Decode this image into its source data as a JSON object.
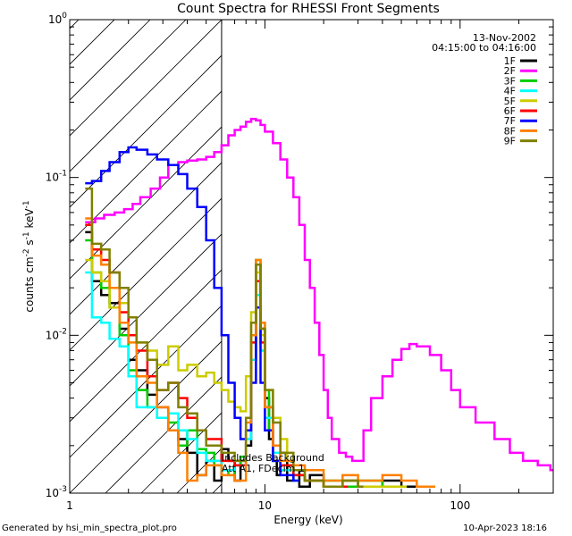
{
  "chart_data": {
    "type": "line",
    "title": "Count Spectra for RHESSI Front Segments",
    "xlabel": "Energy (keV)",
    "ylabel_main": "counts cm",
    "ylabel_sup1": "-2",
    "ylabel_mid": " s",
    "ylabel_sup2": "-1",
    "ylabel_end": " keV",
    "ylabel_sup3": "-1",
    "xscale": "log",
    "yscale": "log",
    "xlim": [
      1,
      300
    ],
    "ylim": [
      0.001,
      1
    ],
    "x_ticks": [
      {
        "value": 1,
        "label": "1"
      },
      {
        "value": 10,
        "label": "10"
      },
      {
        "value": 100,
        "label": "100"
      }
    ],
    "y_ticks": [
      {
        "value": 1,
        "base": "10",
        "exp": "0"
      },
      {
        "value": 0.1,
        "base": "10",
        "exp": "-1"
      },
      {
        "value": 0.01,
        "base": "10",
        "exp": "-2"
      },
      {
        "value": 0.001,
        "base": "10",
        "exp": "-3"
      }
    ],
    "hatch_region_max_keV": 6,
    "date": "13-Nov-2002",
    "time_range": "04:15:00 to 04:16:00",
    "annotation_line1": "Includes Background",
    "annotation_line2": "Att A1, FDecim 1",
    "legend_position": "top-right",
    "series": [
      {
        "name": "1F",
        "color": "#000000",
        "x": [
          1.2,
          1.3,
          1.45,
          1.6,
          1.8,
          2.0,
          2.2,
          2.5,
          2.8,
          3.2,
          3.6,
          4.0,
          4.5,
          5.0,
          5.5,
          6.0,
          6.5,
          7.0,
          7.5,
          8.0,
          8.5,
          9.0,
          9.5,
          10.0,
          10.5,
          11.0,
          11.5,
          12.0,
          13.0,
          14.0,
          15.0,
          17.0,
          20.0,
          25.0,
          30.0,
          40.0,
          50.0,
          60.0
        ],
        "values": [
          0.045,
          0.022,
          0.018,
          0.016,
          0.011,
          0.007,
          0.006,
          0.0042,
          0.0035,
          0.0025,
          0.0022,
          0.0018,
          0.0013,
          0.0016,
          0.0012,
          0.0019,
          0.0016,
          0.0012,
          0.0016,
          0.002,
          0.007,
          0.028,
          0.011,
          0.004,
          0.0022,
          0.0016,
          0.0013,
          0.0018,
          0.0012,
          0.0014,
          0.0011,
          0.0013,
          0.0011,
          0.0012,
          0.0011,
          0.0012,
          0.0011,
          0.0011
        ]
      },
      {
        "name": "2F",
        "color": "#ff00ff",
        "x": [
          1.2,
          1.35,
          1.5,
          1.7,
          1.9,
          2.1,
          2.3,
          2.6,
          2.9,
          3.2,
          3.6,
          4.0,
          4.5,
          5.0,
          5.5,
          6.0,
          6.5,
          7.0,
          7.5,
          8.0,
          8.5,
          9.0,
          9.5,
          10.0,
          11.0,
          12.0,
          13.0,
          14.0,
          15.0,
          16.0,
          17.0,
          18.0,
          19.0,
          20.0,
          21.0,
          22.0,
          24.0,
          26.0,
          28.0,
          30.0,
          32.0,
          35.0,
          40.0,
          45.0,
          50.0,
          55.0,
          60.0,
          70.0,
          80.0,
          90.0,
          100.0,
          120.0,
          150.0,
          180.0,
          210.0,
          250.0,
          290.0
        ],
        "values": [
          0.052,
          0.055,
          0.058,
          0.06,
          0.063,
          0.068,
          0.075,
          0.085,
          0.1,
          0.12,
          0.125,
          0.128,
          0.13,
          0.135,
          0.145,
          0.16,
          0.185,
          0.2,
          0.21,
          0.225,
          0.235,
          0.23,
          0.215,
          0.195,
          0.165,
          0.13,
          0.1,
          0.075,
          0.05,
          0.03,
          0.02,
          0.012,
          0.0075,
          0.0045,
          0.003,
          0.0022,
          0.0018,
          0.0017,
          0.0016,
          0.0016,
          0.0025,
          0.004,
          0.0055,
          0.007,
          0.0082,
          0.0088,
          0.0085,
          0.0075,
          0.006,
          0.0045,
          0.0035,
          0.0028,
          0.0022,
          0.0018,
          0.0016,
          0.0015,
          0.0014
        ]
      },
      {
        "name": "3F",
        "color": "#00cc00",
        "x": [
          1.2,
          1.3,
          1.45,
          1.6,
          1.8,
          2.0,
          2.2,
          2.5,
          2.8,
          3.2,
          3.6,
          4.0,
          4.5,
          5.0,
          5.5,
          6.0,
          6.5,
          7.0,
          7.5,
          8.0,
          8.5,
          9.0,
          9.5,
          10.0,
          10.5,
          11.0,
          12.0,
          14.0,
          16.0,
          20.0,
          25.0,
          30.0,
          40.0,
          50.0
        ],
        "values": [
          0.04,
          0.025,
          0.02,
          0.015,
          0.01,
          0.006,
          0.0045,
          0.0035,
          0.003,
          0.0028,
          0.002,
          0.0025,
          0.0019,
          0.0018,
          0.0015,
          0.0014,
          0.0013,
          0.0015,
          0.0017,
          0.0025,
          0.01,
          0.03,
          0.012,
          0.0045,
          0.0025,
          0.0016,
          0.0014,
          0.0013,
          0.0012,
          0.0012,
          0.0011,
          0.0012,
          0.0011,
          0.0011
        ]
      },
      {
        "name": "4F",
        "color": "#00ffff",
        "x": [
          1.2,
          1.3,
          1.45,
          1.6,
          1.8,
          2.0,
          2.2,
          2.5,
          2.8,
          3.2,
          3.6,
          4.0,
          4.5,
          5.0,
          6.0,
          7.0,
          8.0,
          8.5,
          9.0,
          9.5,
          10.0,
          11.0,
          12.0,
          14.0
        ],
        "values": [
          0.025,
          0.013,
          0.012,
          0.0095,
          0.0085,
          0.0055,
          0.0035,
          0.0035,
          0.003,
          0.0032,
          0.0025,
          0.0022,
          0.0018,
          0.0016,
          0.0014,
          0.0015,
          0.0022,
          0.007,
          0.018,
          0.008,
          0.003,
          0.0018,
          0.0014,
          0.0012
        ]
      },
      {
        "name": "5F",
        "color": "#cccc00",
        "x": [
          1.2,
          1.3,
          1.45,
          1.6,
          1.8,
          2.0,
          2.2,
          2.5,
          2.8,
          3.2,
          3.6,
          4.0,
          4.5,
          5.0,
          5.5,
          6.0,
          6.5,
          7.0,
          7.5,
          8.0,
          8.5,
          9.0,
          9.5,
          10.0,
          11.0,
          12.0,
          13.0,
          14.0,
          16.0,
          20.0,
          25.0,
          30.0,
          40.0,
          50.0
        ],
        "values": [
          0.03,
          0.025,
          0.022,
          0.015,
          0.016,
          0.013,
          0.009,
          0.008,
          0.0065,
          0.0085,
          0.006,
          0.0065,
          0.0055,
          0.0058,
          0.005,
          0.0045,
          0.0038,
          0.0035,
          0.0033,
          0.0055,
          0.014,
          0.025,
          0.01,
          0.0045,
          0.003,
          0.0022,
          0.0016,
          0.0014,
          0.0012,
          0.0011,
          0.0012,
          0.0011,
          0.0011,
          0.0011
        ]
      },
      {
        "name": "6F",
        "color": "#ff0000",
        "x": [
          1.2,
          1.3,
          1.45,
          1.6,
          1.8,
          2.0,
          2.2,
          2.5,
          2.8,
          3.2,
          3.6,
          4.0,
          4.5,
          5.0,
          6.0,
          7.0,
          8.0,
          8.5,
          9.0,
          9.5,
          10.0,
          11.0,
          12.0,
          14.0,
          16.0,
          20.0,
          25.0
        ],
        "values": [
          0.05,
          0.035,
          0.03,
          0.025,
          0.014,
          0.01,
          0.008,
          0.0055,
          0.0045,
          0.005,
          0.004,
          0.003,
          0.0025,
          0.0022,
          0.0016,
          0.0015,
          0.0025,
          0.009,
          0.022,
          0.009,
          0.0035,
          0.002,
          0.0015,
          0.0013,
          0.0012,
          0.0011,
          0.0011
        ]
      },
      {
        "name": "7F",
        "color": "#0000ff",
        "x": [
          1.2,
          1.3,
          1.45,
          1.6,
          1.8,
          2.0,
          2.2,
          2.5,
          2.8,
          3.2,
          3.6,
          4.0,
          4.5,
          5.0,
          5.5,
          6.0,
          6.5,
          7.0,
          7.5,
          8.0,
          8.5,
          9.0,
          9.5,
          10.0,
          11.0,
          12.0,
          14.0
        ],
        "values": [
          0.092,
          0.095,
          0.11,
          0.125,
          0.145,
          0.155,
          0.15,
          0.14,
          0.13,
          0.12,
          0.105,
          0.085,
          0.065,
          0.04,
          0.02,
          0.01,
          0.005,
          0.003,
          0.0022,
          0.0025,
          0.005,
          0.015,
          0.005,
          0.0025,
          0.0016,
          0.0013,
          0.0012
        ]
      },
      {
        "name": "8F",
        "color": "#ff8000",
        "x": [
          1.2,
          1.3,
          1.45,
          1.6,
          1.8,
          2.0,
          2.2,
          2.5,
          2.8,
          3.2,
          3.6,
          4.0,
          4.5,
          5.0,
          6.0,
          7.0,
          8.0,
          8.5,
          9.0,
          9.5,
          10.0,
          11.0,
          12.0,
          14.0,
          16.0,
          20.0,
          25.0,
          30.0,
          40.0,
          50.0,
          60.0,
          70.0
        ],
        "values": [
          0.055,
          0.032,
          0.028,
          0.02,
          0.012,
          0.009,
          0.0055,
          0.005,
          0.0035,
          0.0025,
          0.0018,
          0.0012,
          0.0013,
          0.0015,
          0.0013,
          0.0012,
          0.0028,
          0.01,
          0.03,
          0.012,
          0.0035,
          0.002,
          0.0016,
          0.0015,
          0.0014,
          0.0012,
          0.0013,
          0.0012,
          0.0013,
          0.0012,
          0.0011,
          0.0011
        ]
      },
      {
        "name": "9F",
        "color": "#808000",
        "x": [
          1.2,
          1.3,
          1.45,
          1.6,
          1.8,
          2.0,
          2.2,
          2.5,
          2.8,
          3.2,
          3.6,
          4.0,
          4.5,
          5.0,
          6.0,
          7.0,
          8.0,
          8.5,
          9.0,
          9.5,
          10.0,
          11.0,
          12.0,
          14.0,
          16.0,
          20.0,
          25.0,
          30.0
        ],
        "values": [
          0.085,
          0.038,
          0.035,
          0.025,
          0.02,
          0.013,
          0.009,
          0.007,
          0.0045,
          0.005,
          0.0035,
          0.0032,
          0.0025,
          0.002,
          0.0018,
          0.0016,
          0.003,
          0.012,
          0.028,
          0.011,
          0.0045,
          0.0028,
          0.0018,
          0.0014,
          0.0012,
          0.0011,
          0.0012,
          0.0011
        ]
      }
    ]
  },
  "footer": {
    "generated_by": "Generated by hsi_min_spectra_plot.pro",
    "timestamp": "10-Apr-2023 18:16"
  }
}
